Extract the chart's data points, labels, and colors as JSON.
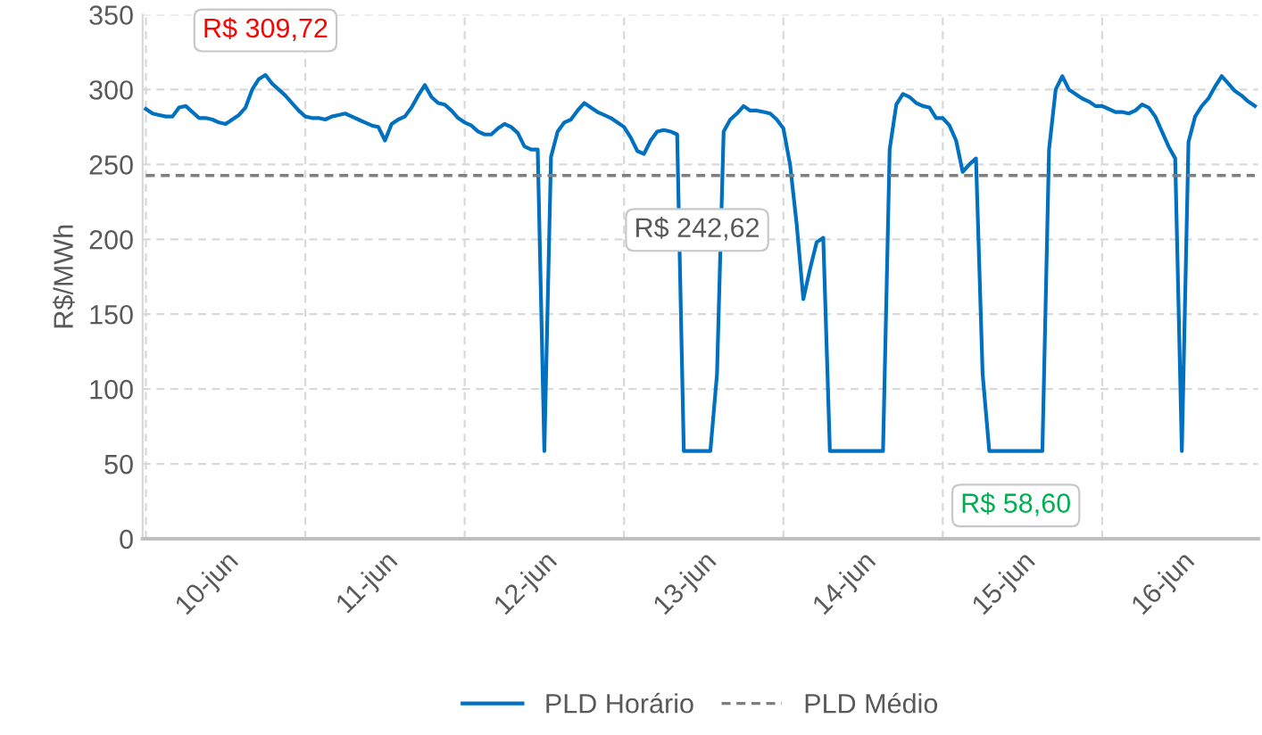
{
  "chart_data": {
    "type": "line",
    "ylabel": "R$/MWh",
    "categories": [
      null,
      null,
      null,
      null,
      null,
      null,
      null,
      null,
      null,
      null,
      null,
      null,
      "10-jun",
      null,
      null,
      null,
      null,
      null,
      null,
      null,
      null,
      null,
      null,
      null,
      null,
      null,
      null,
      null,
      null,
      null,
      null,
      null,
      null,
      null,
      null,
      null,
      "11-jun",
      null,
      null,
      null,
      null,
      null,
      null,
      null,
      null,
      null,
      null,
      null,
      null,
      null,
      null,
      null,
      null,
      null,
      null,
      null,
      null,
      null,
      null,
      null,
      "12-jun",
      null,
      null,
      null,
      null,
      null,
      null,
      null,
      null,
      null,
      null,
      null,
      null,
      null,
      null,
      null,
      null,
      null,
      null,
      null,
      null,
      null,
      null,
      null,
      "13-jun",
      null,
      null,
      null,
      null,
      null,
      null,
      null,
      null,
      null,
      null,
      null,
      null,
      null,
      null,
      null,
      null,
      null,
      null,
      null,
      null,
      null,
      null,
      null,
      "14-jun",
      null,
      null,
      null,
      null,
      null,
      null,
      null,
      null,
      null,
      null,
      null,
      null,
      null,
      null,
      null,
      null,
      null,
      null,
      null,
      null,
      null,
      null,
      null,
      "15-jun",
      null,
      null,
      null,
      null,
      null,
      null,
      null,
      null,
      null,
      null,
      null,
      null,
      null,
      null,
      null,
      null,
      null,
      null,
      null,
      null,
      null,
      null,
      null,
      "16-jun",
      null,
      null,
      null,
      null,
      null,
      null,
      null,
      null,
      null,
      null,
      null
    ],
    "ylim": [
      0,
      350
    ],
    "yticks": [
      0,
      50,
      100,
      150,
      200,
      250,
      300,
      350
    ],
    "grid": true,
    "legend": "bottom",
    "marker": "none",
    "series": [
      {
        "name": "PLD Horário",
        "color": "#0070c0",
        "line_style": "solid",
        "values": [
          287,
          284,
          283,
          282,
          282,
          288,
          289,
          285,
          281,
          281,
          280,
          278,
          277,
          280,
          283,
          288,
          300,
          307,
          309.72,
          304,
          300,
          296,
          291,
          286,
          282,
          281,
          281,
          280,
          282,
          283,
          284,
          282,
          280,
          278,
          276,
          275,
          266,
          277,
          280,
          282,
          288,
          296,
          303,
          295,
          291,
          290,
          286,
          281,
          278,
          276,
          272,
          270,
          270,
          274,
          277,
          275,
          271,
          262,
          260,
          260,
          58.6,
          255,
          272,
          278,
          280,
          286,
          291,
          288,
          285,
          283,
          281,
          278,
          275,
          268,
          259,
          257,
          266,
          272,
          273,
          272,
          270,
          58.6,
          58.6,
          58.6,
          58.6,
          58.6,
          110,
          272,
          280,
          284,
          289,
          286,
          286,
          285,
          284,
          280,
          274,
          250,
          210,
          160,
          180,
          198,
          201,
          58.6,
          58.6,
          58.6,
          58.6,
          58.6,
          58.6,
          58.6,
          58.6,
          58.6,
          260,
          290,
          297,
          295,
          291,
          289,
          288,
          281,
          281,
          276,
          266,
          245,
          250,
          254,
          110,
          58.6,
          58.6,
          58.6,
          58.6,
          58.6,
          58.6,
          58.6,
          58.6,
          58.6,
          260,
          300,
          309,
          300,
          297,
          294,
          292,
          289,
          289,
          287,
          285,
          285,
          284,
          286,
          290,
          288,
          282,
          272,
          262,
          254,
          58.6,
          265,
          282,
          289,
          294,
          302,
          309,
          304,
          299,
          296,
          292,
          289
        ],
        "value_labels": [
          null,
          null,
          null,
          null,
          null,
          null,
          null,
          null,
          null,
          null,
          null,
          null,
          null,
          null,
          null,
          null,
          null,
          null,
          "R$ 309,72",
          null,
          null,
          null,
          null,
          null,
          null,
          null,
          null,
          null,
          null,
          null,
          null,
          null,
          null,
          null,
          null,
          null,
          null,
          null,
          null,
          null,
          null,
          null,
          null,
          null,
          null,
          null,
          null,
          null,
          null,
          null,
          null,
          null,
          null,
          null,
          null,
          null,
          null,
          null,
          null,
          null,
          null,
          null,
          null,
          null,
          null,
          null,
          null,
          null,
          null,
          null,
          null,
          null,
          null,
          null,
          null,
          null,
          null,
          null,
          null,
          null,
          null,
          null,
          null,
          null,
          null,
          null,
          null,
          null,
          null,
          null,
          null,
          null,
          null,
          null,
          null,
          null,
          null,
          null,
          null,
          null,
          null,
          null,
          null,
          null,
          null,
          null,
          null,
          null,
          null,
          null,
          null,
          null,
          null,
          null,
          null,
          null,
          null,
          null,
          null,
          null,
          null,
          null,
          null,
          null,
          null,
          null,
          null,
          null,
          null,
          null,
          null,
          "R$ 58,60",
          null,
          null,
          null,
          null,
          null,
          null,
          null,
          null,
          null,
          null,
          null,
          null,
          null,
          null,
          null,
          null,
          null,
          null,
          null,
          null,
          null,
          null,
          null,
          null,
          null,
          null,
          null,
          null,
          null,
          null,
          null,
          null,
          null,
          null,
          null,
          null
        ]
      },
      {
        "name": "PLD Médio",
        "color": "#7f7f7f",
        "line_style": "dashed",
        "values": [
          242.62,
          242.62,
          242.62,
          242.62,
          242.62,
          242.62,
          242.62,
          242.62,
          242.62,
          242.62,
          242.62,
          242.62,
          242.62,
          242.62,
          242.62,
          242.62,
          242.62,
          242.62,
          242.62,
          242.62,
          242.62,
          242.62,
          242.62,
          242.62,
          242.62,
          242.62,
          242.62,
          242.62,
          242.62,
          242.62,
          242.62,
          242.62,
          242.62,
          242.62,
          242.62,
          242.62,
          242.62,
          242.62,
          242.62,
          242.62,
          242.62,
          242.62,
          242.62,
          242.62,
          242.62,
          242.62,
          242.62,
          242.62,
          242.62,
          242.62,
          242.62,
          242.62,
          242.62,
          242.62,
          242.62,
          242.62,
          242.62,
          242.62,
          242.62,
          242.62,
          242.62,
          242.62,
          242.62,
          242.62,
          242.62,
          242.62,
          242.62,
          242.62,
          242.62,
          242.62,
          242.62,
          242.62,
          242.62,
          242.62,
          242.62,
          242.62,
          242.62,
          242.62,
          242.62,
          242.62,
          242.62,
          242.62,
          242.62,
          242.62,
          242.62,
          242.62,
          242.62,
          242.62,
          242.62,
          242.62,
          242.62,
          242.62,
          242.62,
          242.62,
          242.62,
          242.62,
          242.62,
          242.62,
          242.62,
          242.62,
          242.62,
          242.62,
          242.62,
          242.62,
          242.62,
          242.62,
          242.62,
          242.62,
          242.62,
          242.62,
          242.62,
          242.62,
          242.62,
          242.62,
          242.62,
          242.62,
          242.62,
          242.62,
          242.62,
          242.62,
          242.62,
          242.62,
          242.62,
          242.62,
          242.62,
          242.62,
          242.62,
          242.62,
          242.62,
          242.62,
          242.62,
          242.62,
          242.62,
          242.62,
          242.62,
          242.62,
          242.62,
          242.62,
          242.62,
          242.62,
          242.62,
          242.62,
          242.62,
          242.62,
          242.62,
          242.62,
          242.62,
          242.62,
          242.62,
          242.62,
          242.62,
          242.62,
          242.62,
          242.62,
          242.62,
          242.62,
          242.62,
          242.62,
          242.62,
          242.62,
          242.62,
          242.62,
          242.62,
          242.62,
          242.62,
          242.62,
          242.62,
          242.62
        ],
        "value_labels": [
          null,
          null,
          null,
          null,
          null,
          null,
          null,
          null,
          null,
          null,
          null,
          null,
          null,
          null,
          null,
          null,
          null,
          null,
          null,
          null,
          null,
          null,
          null,
          null,
          null,
          null,
          null,
          null,
          null,
          null,
          null,
          null,
          null,
          null,
          null,
          null,
          null,
          null,
          null,
          null,
          null,
          null,
          null,
          null,
          null,
          null,
          null,
          null,
          null,
          null,
          null,
          null,
          null,
          null,
          null,
          null,
          null,
          null,
          null,
          null,
          null,
          null,
          null,
          null,
          null,
          null,
          null,
          null,
          null,
          null,
          null,
          null,
          null,
          null,
          null,
          null,
          null,
          null,
          null,
          null,
          null,
          null,
          null,
          "R$ 242,62",
          null,
          null,
          null,
          null,
          null,
          null,
          null,
          null,
          null,
          null,
          null,
          null,
          null,
          null,
          null,
          null,
          null,
          null,
          null,
          null,
          null,
          null,
          null,
          null,
          null,
          null,
          null,
          null,
          null,
          null,
          null,
          null,
          null,
          null,
          null,
          null,
          null,
          null,
          null,
          null,
          null,
          null,
          null,
          null,
          null,
          null,
          null,
          null,
          null,
          null,
          null,
          null,
          null,
          null,
          null,
          null,
          null,
          null,
          null,
          null,
          null,
          null,
          null,
          null,
          null,
          null,
          null,
          null,
          null,
          null,
          null,
          null,
          null,
          null,
          null,
          null,
          null,
          null,
          null,
          null,
          null,
          null,
          null,
          null
        ]
      }
    ]
  }
}
